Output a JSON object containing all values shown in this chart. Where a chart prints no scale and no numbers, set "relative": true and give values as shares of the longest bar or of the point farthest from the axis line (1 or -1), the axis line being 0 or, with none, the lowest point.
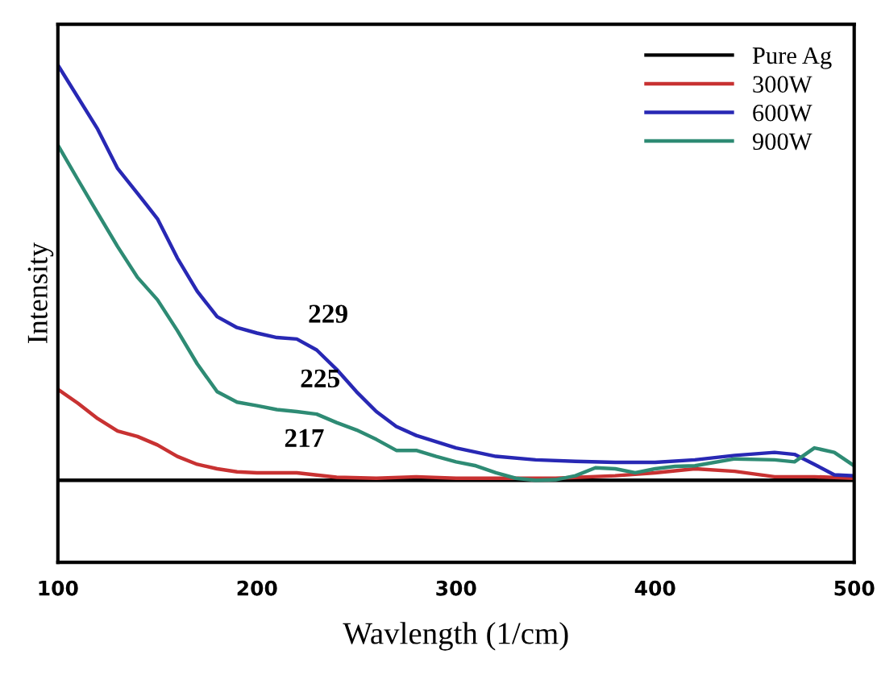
{
  "chart_data": {
    "type": "line",
    "xlabel": "Wavlength (1/cm)",
    "ylabel": "Intensity",
    "relative": true,
    "xlim": [
      100,
      500
    ],
    "xticks": [
      100,
      200,
      300,
      400,
      500
    ],
    "tick_labels": "x",
    "legend": "top right",
    "grid": false,
    "series": [
      {
        "name": "Pure Ag",
        "color": "#000000",
        "x": [
          100,
          500
        ],
        "values": [
          0.165,
          0.165
        ]
      },
      {
        "name": "300W",
        "color": "#c83232",
        "x": [
          100,
          110,
          120,
          130,
          140,
          150,
          160,
          170,
          180,
          190,
          200,
          220,
          240,
          260,
          280,
          300,
          350,
          380,
          400,
          420,
          440,
          460,
          480,
          500
        ],
        "values": [
          0.348,
          0.32,
          0.289,
          0.264,
          0.253,
          0.236,
          0.213,
          0.197,
          0.188,
          0.182,
          0.18,
          0.18,
          0.171,
          0.169,
          0.172,
          0.169,
          0.169,
          0.174,
          0.18,
          0.188,
          0.183,
          0.172,
          0.172,
          0.169
        ]
      },
      {
        "name": "600W",
        "color": "#2828b4",
        "x": [
          100,
          120,
          130,
          140,
          150,
          160,
          170,
          180,
          190,
          200,
          210,
          220,
          230,
          240,
          250,
          260,
          270,
          280,
          300,
          320,
          340,
          360,
          380,
          400,
          420,
          440,
          460,
          470,
          480,
          490,
          500
        ],
        "values": [
          1.0,
          0.871,
          0.792,
          0.742,
          0.691,
          0.612,
          0.545,
          0.494,
          0.472,
          0.461,
          0.452,
          0.449,
          0.427,
          0.388,
          0.343,
          0.303,
          0.273,
          0.255,
          0.23,
          0.213,
          0.206,
          0.203,
          0.201,
          0.201,
          0.206,
          0.215,
          0.221,
          0.217,
          0.197,
          0.176,
          0.174
        ]
      },
      {
        "name": "900W",
        "color": "#2e8b74",
        "x": [
          100,
          110,
          120,
          130,
          140,
          150,
          160,
          170,
          180,
          190,
          200,
          210,
          220,
          230,
          240,
          250,
          260,
          270,
          280,
          290,
          300,
          310,
          320,
          330,
          340,
          350,
          360,
          370,
          380,
          390,
          400,
          410,
          420,
          440,
          460,
          470,
          480,
          490,
          500
        ],
        "values": [
          0.839,
          0.77,
          0.702,
          0.635,
          0.573,
          0.528,
          0.466,
          0.399,
          0.343,
          0.322,
          0.315,
          0.307,
          0.303,
          0.298,
          0.281,
          0.266,
          0.247,
          0.225,
          0.225,
          0.213,
          0.202,
          0.194,
          0.18,
          0.169,
          0.165,
          0.166,
          0.174,
          0.19,
          0.188,
          0.18,
          0.188,
          0.193,
          0.194,
          0.208,
          0.206,
          0.202,
          0.23,
          0.221,
          0.194
        ]
      }
    ],
    "annotations": [
      {
        "text": "229",
        "x": 229,
        "y": 0.43
      },
      {
        "text": "225",
        "x": 225,
        "y": 0.3
      },
      {
        "text": "217",
        "x": 217,
        "y": 0.18
      }
    ]
  }
}
